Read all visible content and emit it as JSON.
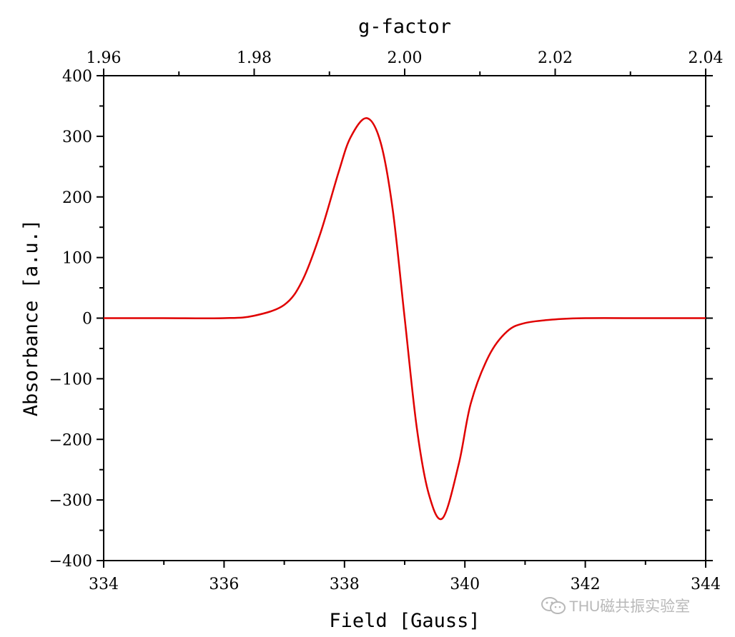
{
  "chart_data": {
    "type": "line",
    "xlabel": "Field [Gauss]",
    "ylabel": "Absorbance [a.u.]",
    "top_axis_label": "g-factor",
    "xlim": [
      334,
      344
    ],
    "ylim": [
      -400,
      400
    ],
    "x_ticks": [
      "334",
      "336",
      "338",
      "340",
      "342",
      "344"
    ],
    "y_ticks": [
      "400",
      "300",
      "200",
      "100",
      "0",
      "−100",
      "−200",
      "−300",
      "−400"
    ],
    "top_ticks": [
      "1.96",
      "1.98",
      "2.00",
      "2.02",
      "2.04"
    ],
    "grid": false,
    "series": [
      {
        "color": "#e00000",
        "x": [
          334.0,
          335.0,
          336.0,
          336.5,
          337.0,
          337.3,
          337.6,
          337.9,
          338.1,
          338.37,
          338.6,
          338.8,
          339.0,
          339.2,
          339.4,
          339.63,
          339.9,
          340.1,
          340.4,
          340.7,
          341.0,
          341.5,
          342.0,
          343.0,
          344.0
        ],
        "y": [
          0,
          0,
          0,
          4,
          22,
          62,
          140,
          240,
          298,
          330,
          290,
          180,
          0,
          -180,
          -290,
          -330,
          -240,
          -140,
          -62,
          -22,
          -8,
          -2,
          0,
          0,
          0
        ]
      }
    ]
  },
  "watermark": {
    "text": "THU磁共振实验室",
    "icon": "wechat-icon"
  }
}
